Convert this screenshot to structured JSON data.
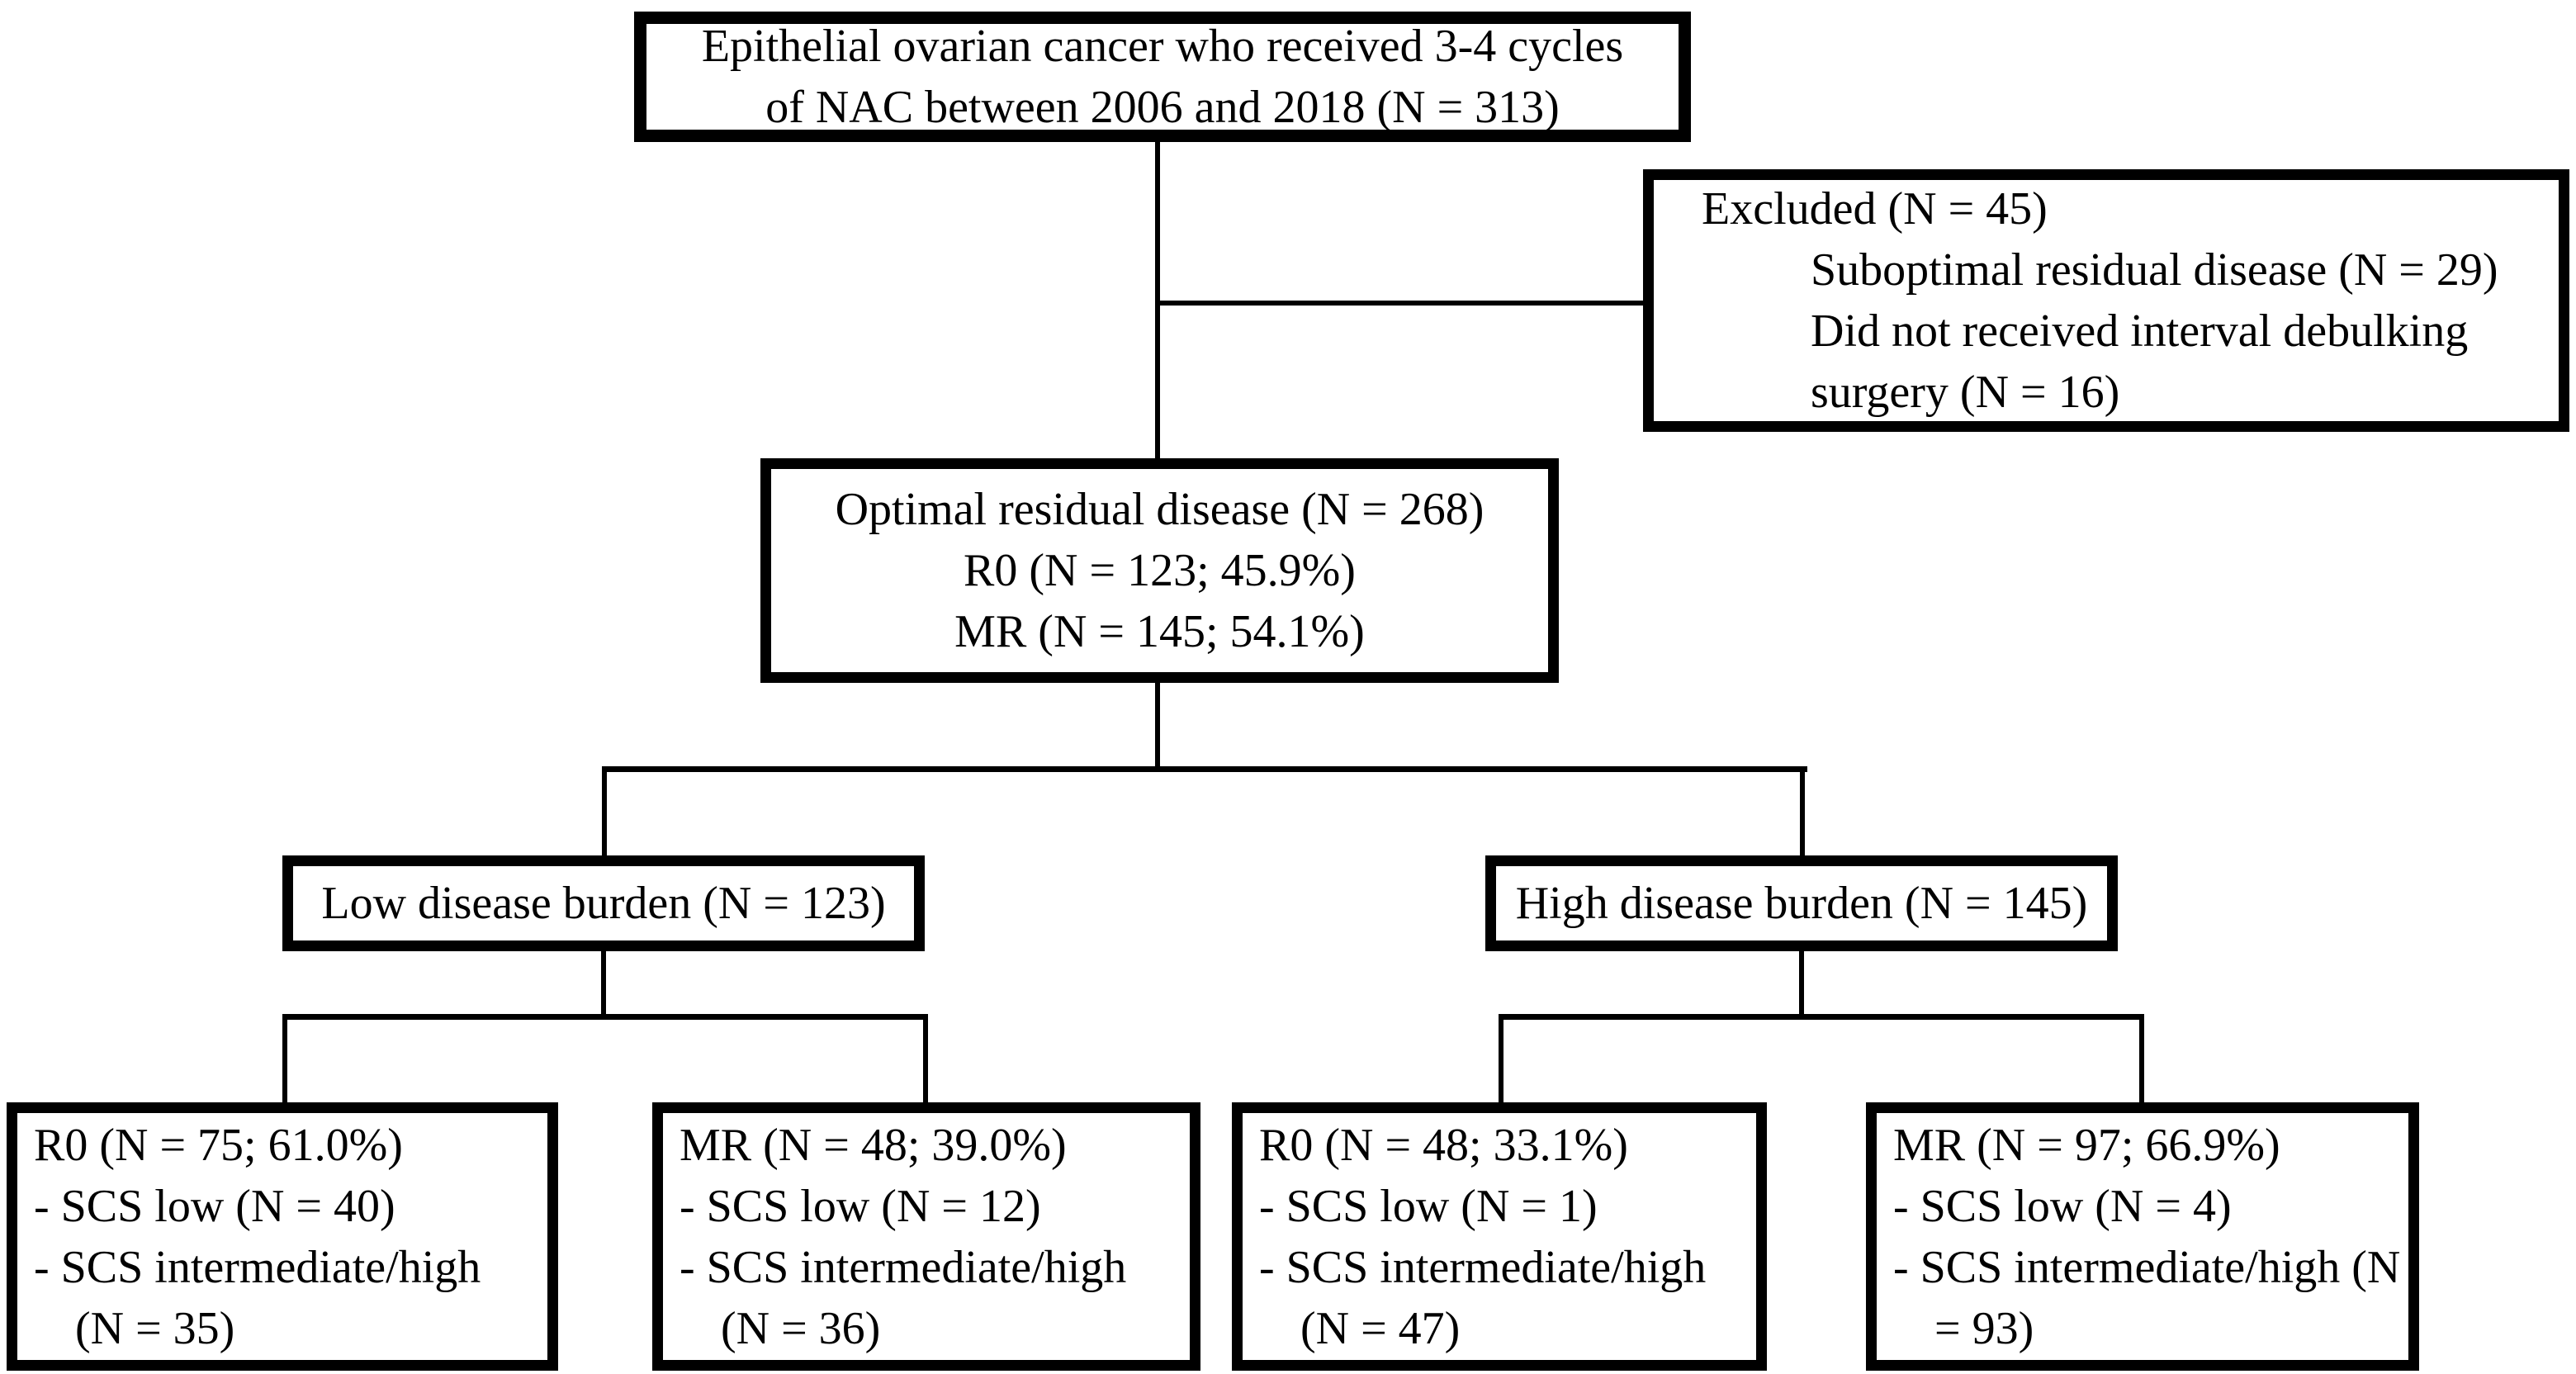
{
  "colors": {
    "border": "#000000",
    "background": "#ffffff",
    "text": "#000000"
  },
  "boxes": {
    "eligible": {
      "lines": [
        "Epithelial ovarian cancer who received 3-4 cycles",
        "of NAC between 2006 and 2018 (N = 313)"
      ]
    },
    "excluded": {
      "title": "Excluded (N = 45)",
      "items": [
        "Suboptimal residual disease (N = 29)",
        "Did not received interval debulking surgery (N = 16)"
      ]
    },
    "optimal": {
      "lines": [
        "Optimal residual disease (N = 268)",
        "R0 (N = 123; 45.9%)",
        "MR (N = 145; 54.1%)"
      ]
    },
    "low_burden": {
      "label": "Low disease burden (N = 123)"
    },
    "high_burden": {
      "label": "High disease burden (N = 145)"
    },
    "low_r0": {
      "title": "R0 (N = 75; 61.0%)",
      "items": [
        "- SCS low (N = 40)",
        "- SCS intermediate/high (N = 35)"
      ]
    },
    "low_mr": {
      "title": "MR (N = 48; 39.0%)",
      "items": [
        "- SCS low (N = 12)",
        "- SCS intermediate/high (N = 36)"
      ]
    },
    "high_r0": {
      "title": "R0 (N = 48; 33.1%)",
      "items": [
        "- SCS low (N = 1)",
        "- SCS intermediate/high (N = 47)"
      ]
    },
    "high_mr": {
      "title": "MR (N = 97; 66.9%)",
      "items": [
        "- SCS low (N = 4)",
        "- SCS intermediate/high (N = 93)"
      ]
    }
  }
}
